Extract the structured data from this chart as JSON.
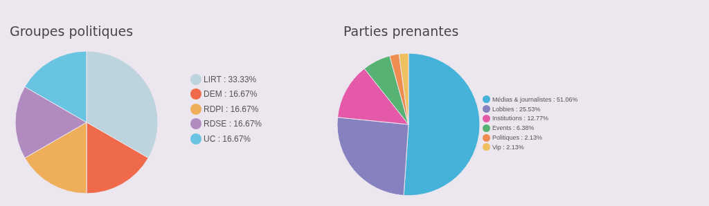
{
  "chart_data": [
    {
      "type": "pie",
      "title": "Groupes politiques",
      "categories": [
        "LIRT : 33.33%",
        "DEM : 16.67%",
        "RDPI : 16.67%",
        "RDSE : 16.67%",
        "UC : 16.67%"
      ],
      "values": [
        33.33,
        16.67,
        16.67,
        16.67,
        16.67
      ],
      "colors": [
        "#bdd4de",
        "#ef6a4a",
        "#efaf5a",
        "#b18bc0",
        "#68c4e0"
      ],
      "legend": "right"
    },
    {
      "type": "pie",
      "title": "Parties prenantes",
      "categories": [
        "Médias & journalistes : 51.06%",
        "Lobbies : 25.53%",
        "Institutions : 12.77%",
        "Events : 6.38%",
        "Politiques : 2.13%",
        "Vip : 2.13%"
      ],
      "values": [
        51.06,
        25.53,
        12.77,
        6.38,
        2.13,
        2.13
      ],
      "colors": [
        "#45b3d9",
        "#8582bf",
        "#e55aa8",
        "#57b374",
        "#ef8c50",
        "#efc060"
      ],
      "legend": "right"
    }
  ]
}
